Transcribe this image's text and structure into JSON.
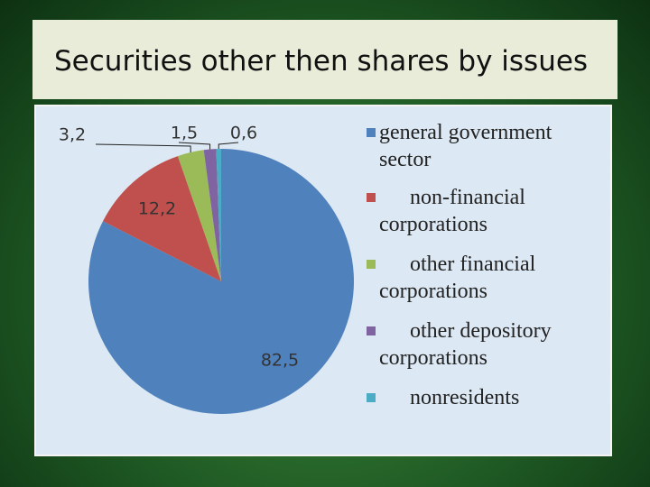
{
  "chart_data": {
    "type": "pie",
    "title": "Securities other then shares by issues",
    "categories": [
      "general government sector",
      "non-financial corporations",
      "other financial corporations",
      "other depository corporations",
      "nonresidents"
    ],
    "values": [
      82.5,
      12.2,
      3.2,
      1.5,
      0.6
    ],
    "value_labels": [
      "82,5",
      "12,2",
      "3,2",
      "1,5",
      "0,6"
    ],
    "colors": [
      "#4f81bd",
      "#c0504d",
      "#9bbb59",
      "#8064a2",
      "#4bacc6"
    ],
    "legend": "right"
  }
}
